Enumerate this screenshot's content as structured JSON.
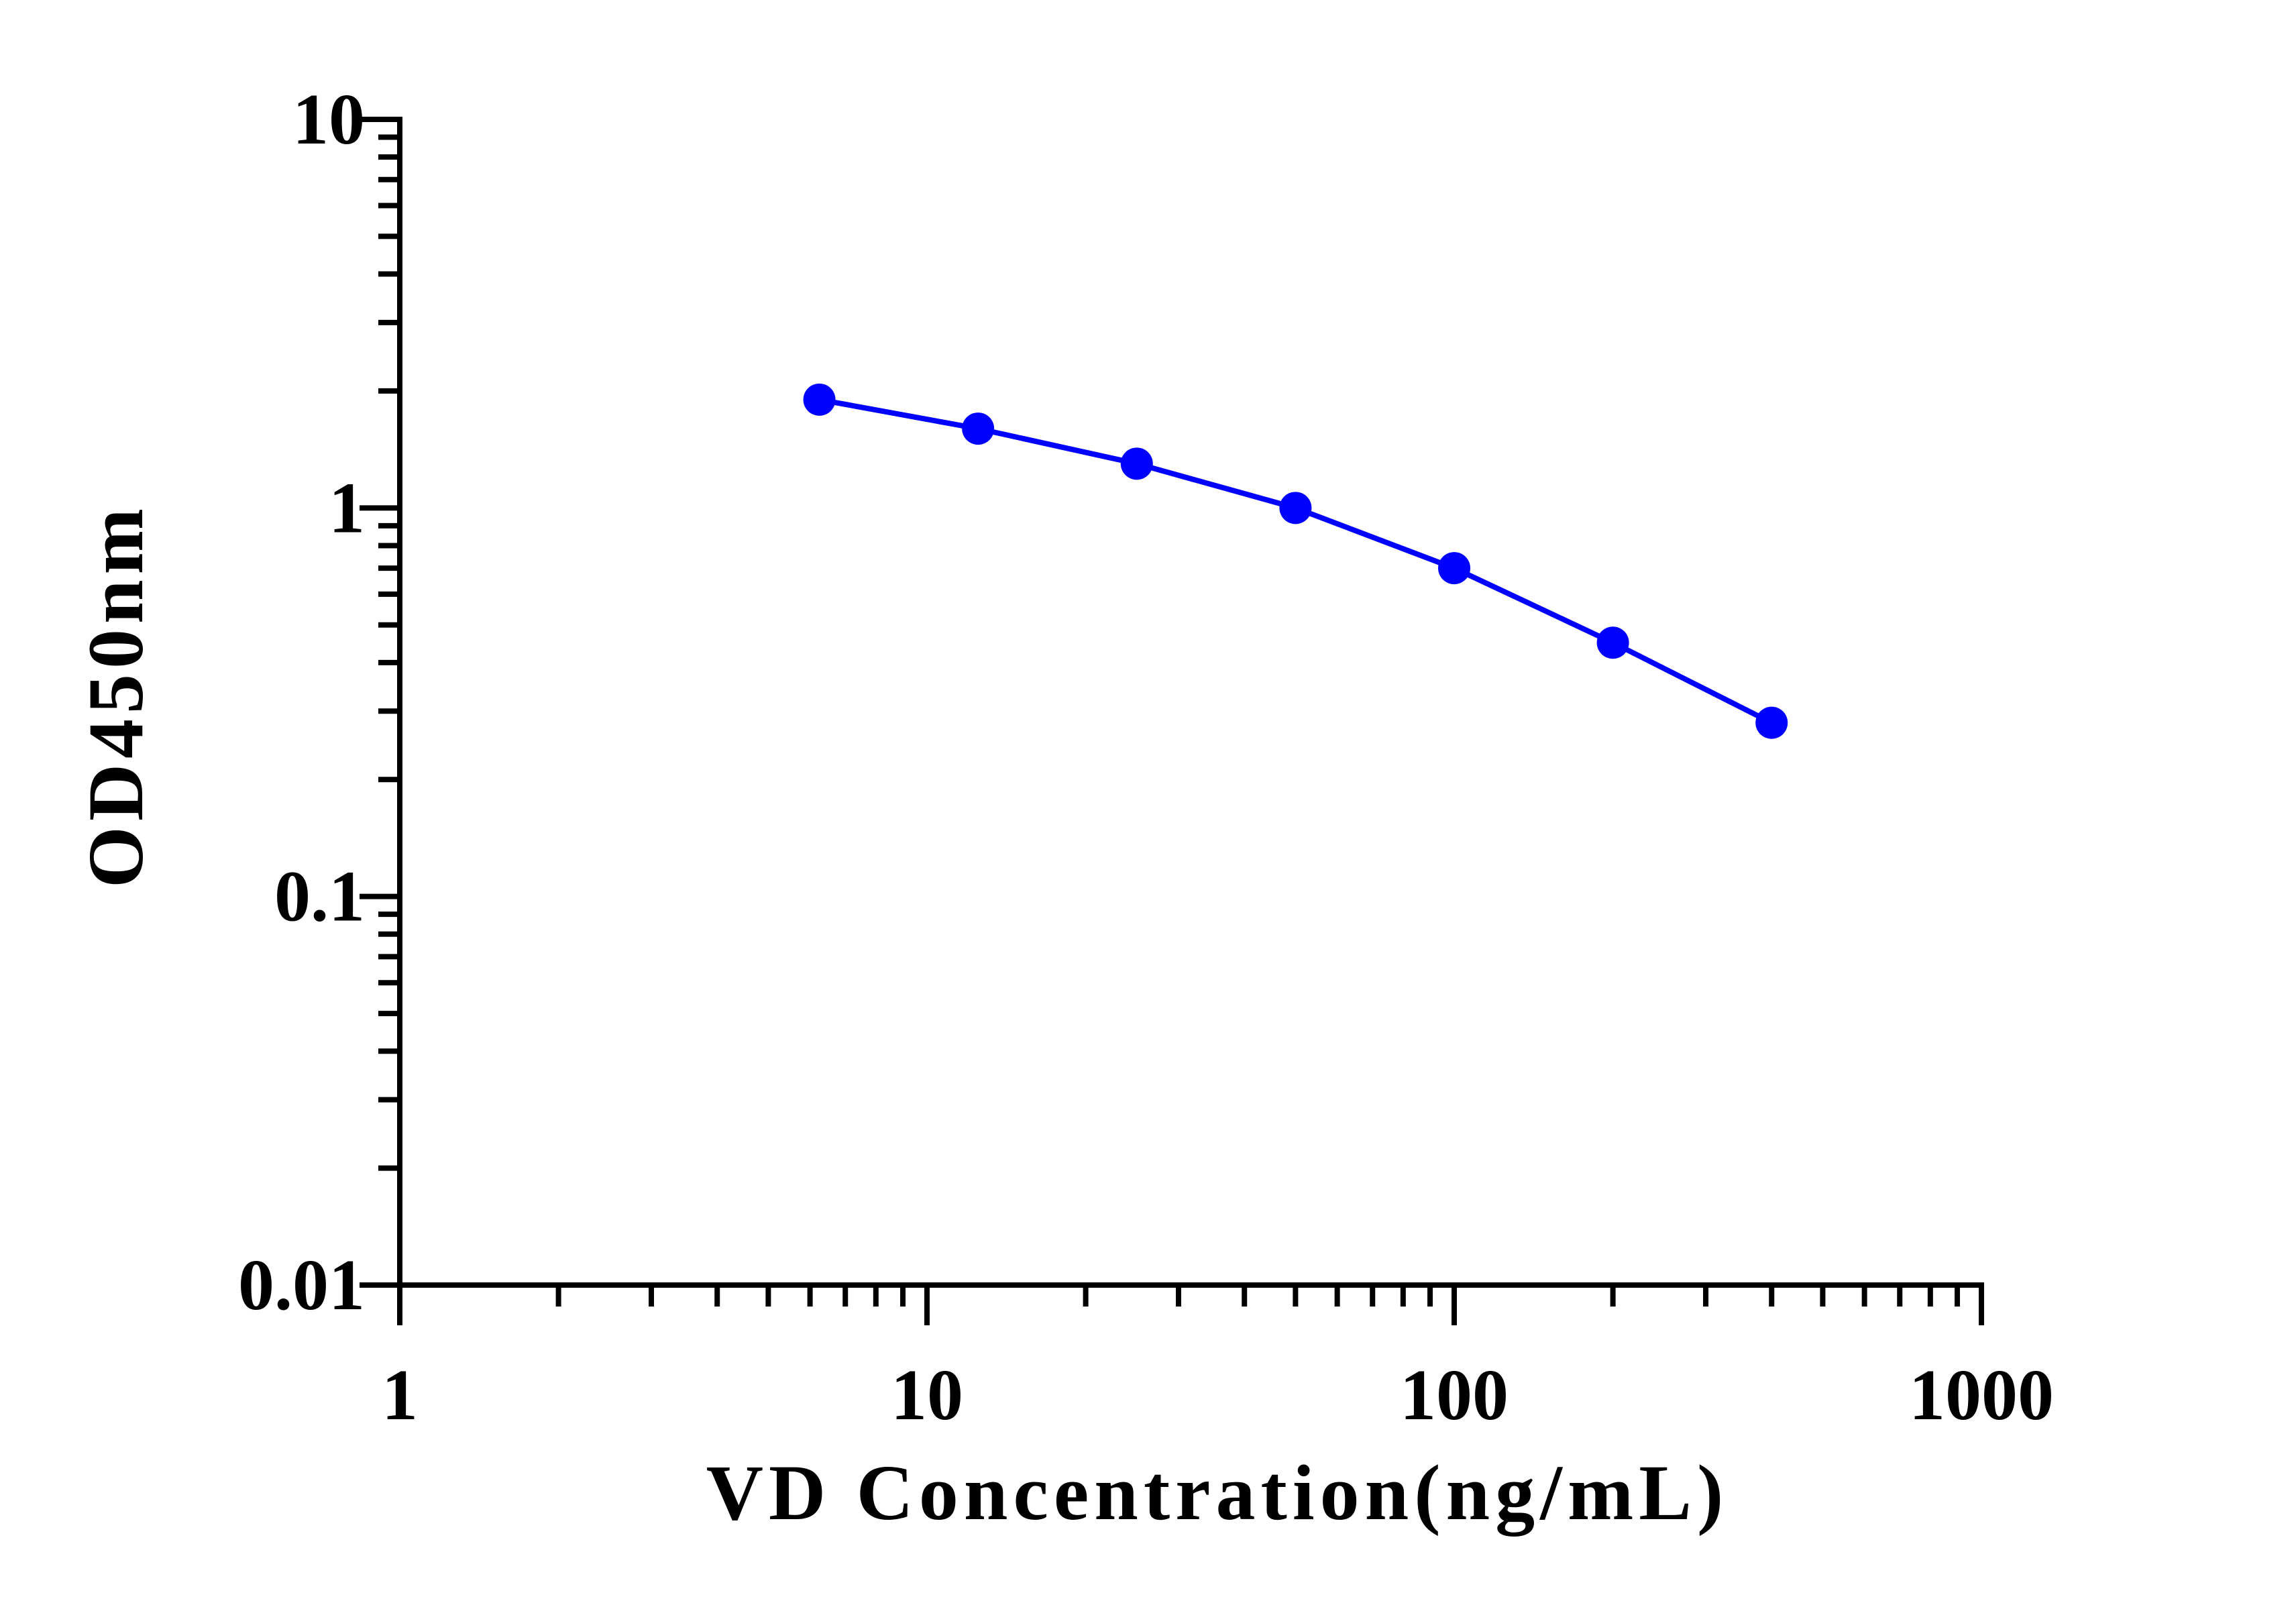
{
  "chart_data": {
    "type": "line",
    "xlabel": "VD Concentration(ng/mL)",
    "ylabel": "OD450nm",
    "xscale": "log",
    "yscale": "log",
    "xlim": [
      1,
      1000
    ],
    "ylim": [
      0.01,
      10
    ],
    "x_tick_labels": [
      "1",
      "10",
      "100",
      "1000"
    ],
    "y_tick_labels": [
      "0.01",
      "0.1",
      "1",
      "10"
    ],
    "grid": false,
    "series": [
      {
        "color": "#0000FF",
        "marker": "circle",
        "x": [
          6.25,
          12.5,
          25,
          50,
          100,
          200,
          400
        ],
        "y": [
          1.9,
          1.6,
          1.3,
          1.0,
          0.7,
          0.45,
          0.28
        ]
      }
    ]
  }
}
